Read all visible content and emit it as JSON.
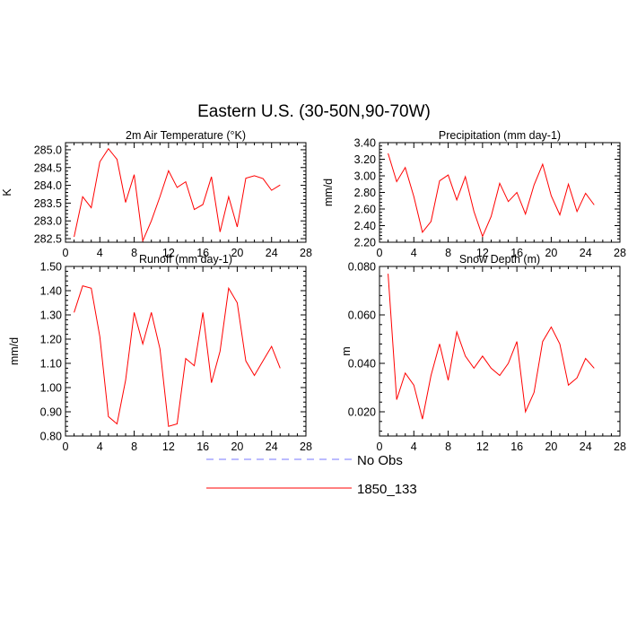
{
  "title": "Eastern U.S. (30-50N,90-70W)",
  "legend": {
    "placement": "bottom-center",
    "entries": [
      {
        "label": "No Obs",
        "color": "#7777ff",
        "dash": "dashed"
      },
      {
        "label": "1850_133",
        "color": "#ff0000",
        "dash": "solid"
      }
    ]
  },
  "chart_data": [
    {
      "type": "line",
      "title": "2m Air Temperature",
      "title_unit": "(°K)",
      "ylabel": "K",
      "xlim": [
        0,
        28
      ],
      "xticks": [
        "0",
        "4",
        "8",
        "12",
        "16",
        "20",
        "24",
        "28"
      ],
      "ylim": [
        282.4,
        285.2
      ],
      "yticks": [
        "282.5",
        "283.0",
        "283.5",
        "284.0",
        "284.5",
        "285.0"
      ],
      "series": [
        {
          "name": "1850_133",
          "color": "#ff0000",
          "x": [
            1,
            2,
            3,
            4,
            5,
            6,
            7,
            8,
            9,
            10,
            11,
            12,
            13,
            14,
            15,
            16,
            17,
            18,
            19,
            20,
            21,
            22,
            23,
            24,
            25
          ],
          "values": [
            282.55,
            283.68,
            283.37,
            284.66,
            285.03,
            284.73,
            283.52,
            284.3,
            282.44,
            283.0,
            283.68,
            284.41,
            283.94,
            284.1,
            283.32,
            283.46,
            284.24,
            282.69,
            283.68,
            282.83,
            284.2,
            284.27,
            284.19,
            283.86,
            284.01
          ]
        }
      ]
    },
    {
      "type": "line",
      "title": "Precipitation",
      "title_unit": "(mm day-1)",
      "ylabel": "mm/d",
      "xlim": [
        0,
        28
      ],
      "xticks": [
        "0",
        "4",
        "8",
        "12",
        "16",
        "20",
        "24",
        "28"
      ],
      "ylim": [
        2.2,
        3.4
      ],
      "yticks": [
        "2.20",
        "2.40",
        "2.60",
        "2.80",
        "3.00",
        "3.20",
        "3.40"
      ],
      "series": [
        {
          "name": "1850_133",
          "color": "#ff0000",
          "x": [
            1,
            2,
            3,
            4,
            5,
            6,
            7,
            8,
            9,
            10,
            11,
            12,
            13,
            14,
            15,
            16,
            17,
            18,
            19,
            20,
            21,
            22,
            23,
            24,
            25
          ],
          "values": [
            3.27,
            2.93,
            3.1,
            2.75,
            2.32,
            2.45,
            2.94,
            3.01,
            2.71,
            2.99,
            2.57,
            2.27,
            2.51,
            2.91,
            2.69,
            2.8,
            2.54,
            2.89,
            3.14,
            2.76,
            2.53,
            2.9,
            2.57,
            2.79,
            2.65
          ]
        }
      ]
    },
    {
      "type": "line",
      "title": "Runoff",
      "title_unit": "(mm day-1)",
      "ylabel": "mm/d",
      "xlim": [
        0,
        28
      ],
      "xticks": [
        "0",
        "4",
        "8",
        "12",
        "16",
        "20",
        "24",
        "28"
      ],
      "ylim": [
        0.8,
        1.5
      ],
      "yticks": [
        "0.80",
        "0.90",
        "1.00",
        "1.10",
        "1.20",
        "1.30",
        "1.40",
        "1.50"
      ],
      "series": [
        {
          "name": "1850_133",
          "color": "#ff0000",
          "x": [
            1,
            2,
            3,
            4,
            5,
            6,
            7,
            8,
            9,
            10,
            11,
            12,
            13,
            14,
            15,
            16,
            17,
            18,
            19,
            20,
            21,
            22,
            23,
            24,
            25
          ],
          "values": [
            1.31,
            1.42,
            1.41,
            1.21,
            0.88,
            0.85,
            1.03,
            1.31,
            1.18,
            1.31,
            1.16,
            0.84,
            0.85,
            1.12,
            1.09,
            1.31,
            1.02,
            1.15,
            1.41,
            1.35,
            1.11,
            1.05,
            1.11,
            1.17,
            1.08
          ]
        }
      ]
    },
    {
      "type": "line",
      "title": "Snow Depth",
      "title_unit": "(m)",
      "ylabel": "m",
      "xlim": [
        0,
        28
      ],
      "xticks": [
        "0",
        "4",
        "8",
        "12",
        "16",
        "20",
        "24",
        "28"
      ],
      "ylim": [
        0.01,
        0.08
      ],
      "yticks": [
        "0.020",
        "0.040",
        "0.060",
        "0.080"
      ],
      "series": [
        {
          "name": "1850_133",
          "color": "#ff0000",
          "x": [
            1,
            2,
            3,
            4,
            5,
            6,
            7,
            8,
            9,
            10,
            11,
            12,
            13,
            14,
            15,
            16,
            17,
            18,
            19,
            20,
            21,
            22,
            23,
            24,
            25
          ],
          "values": [
            0.077,
            0.025,
            0.036,
            0.031,
            0.017,
            0.035,
            0.048,
            0.033,
            0.053,
            0.043,
            0.038,
            0.043,
            0.038,
            0.035,
            0.04,
            0.049,
            0.02,
            0.028,
            0.049,
            0.055,
            0.048,
            0.031,
            0.034,
            0.042,
            0.038
          ]
        }
      ]
    }
  ]
}
